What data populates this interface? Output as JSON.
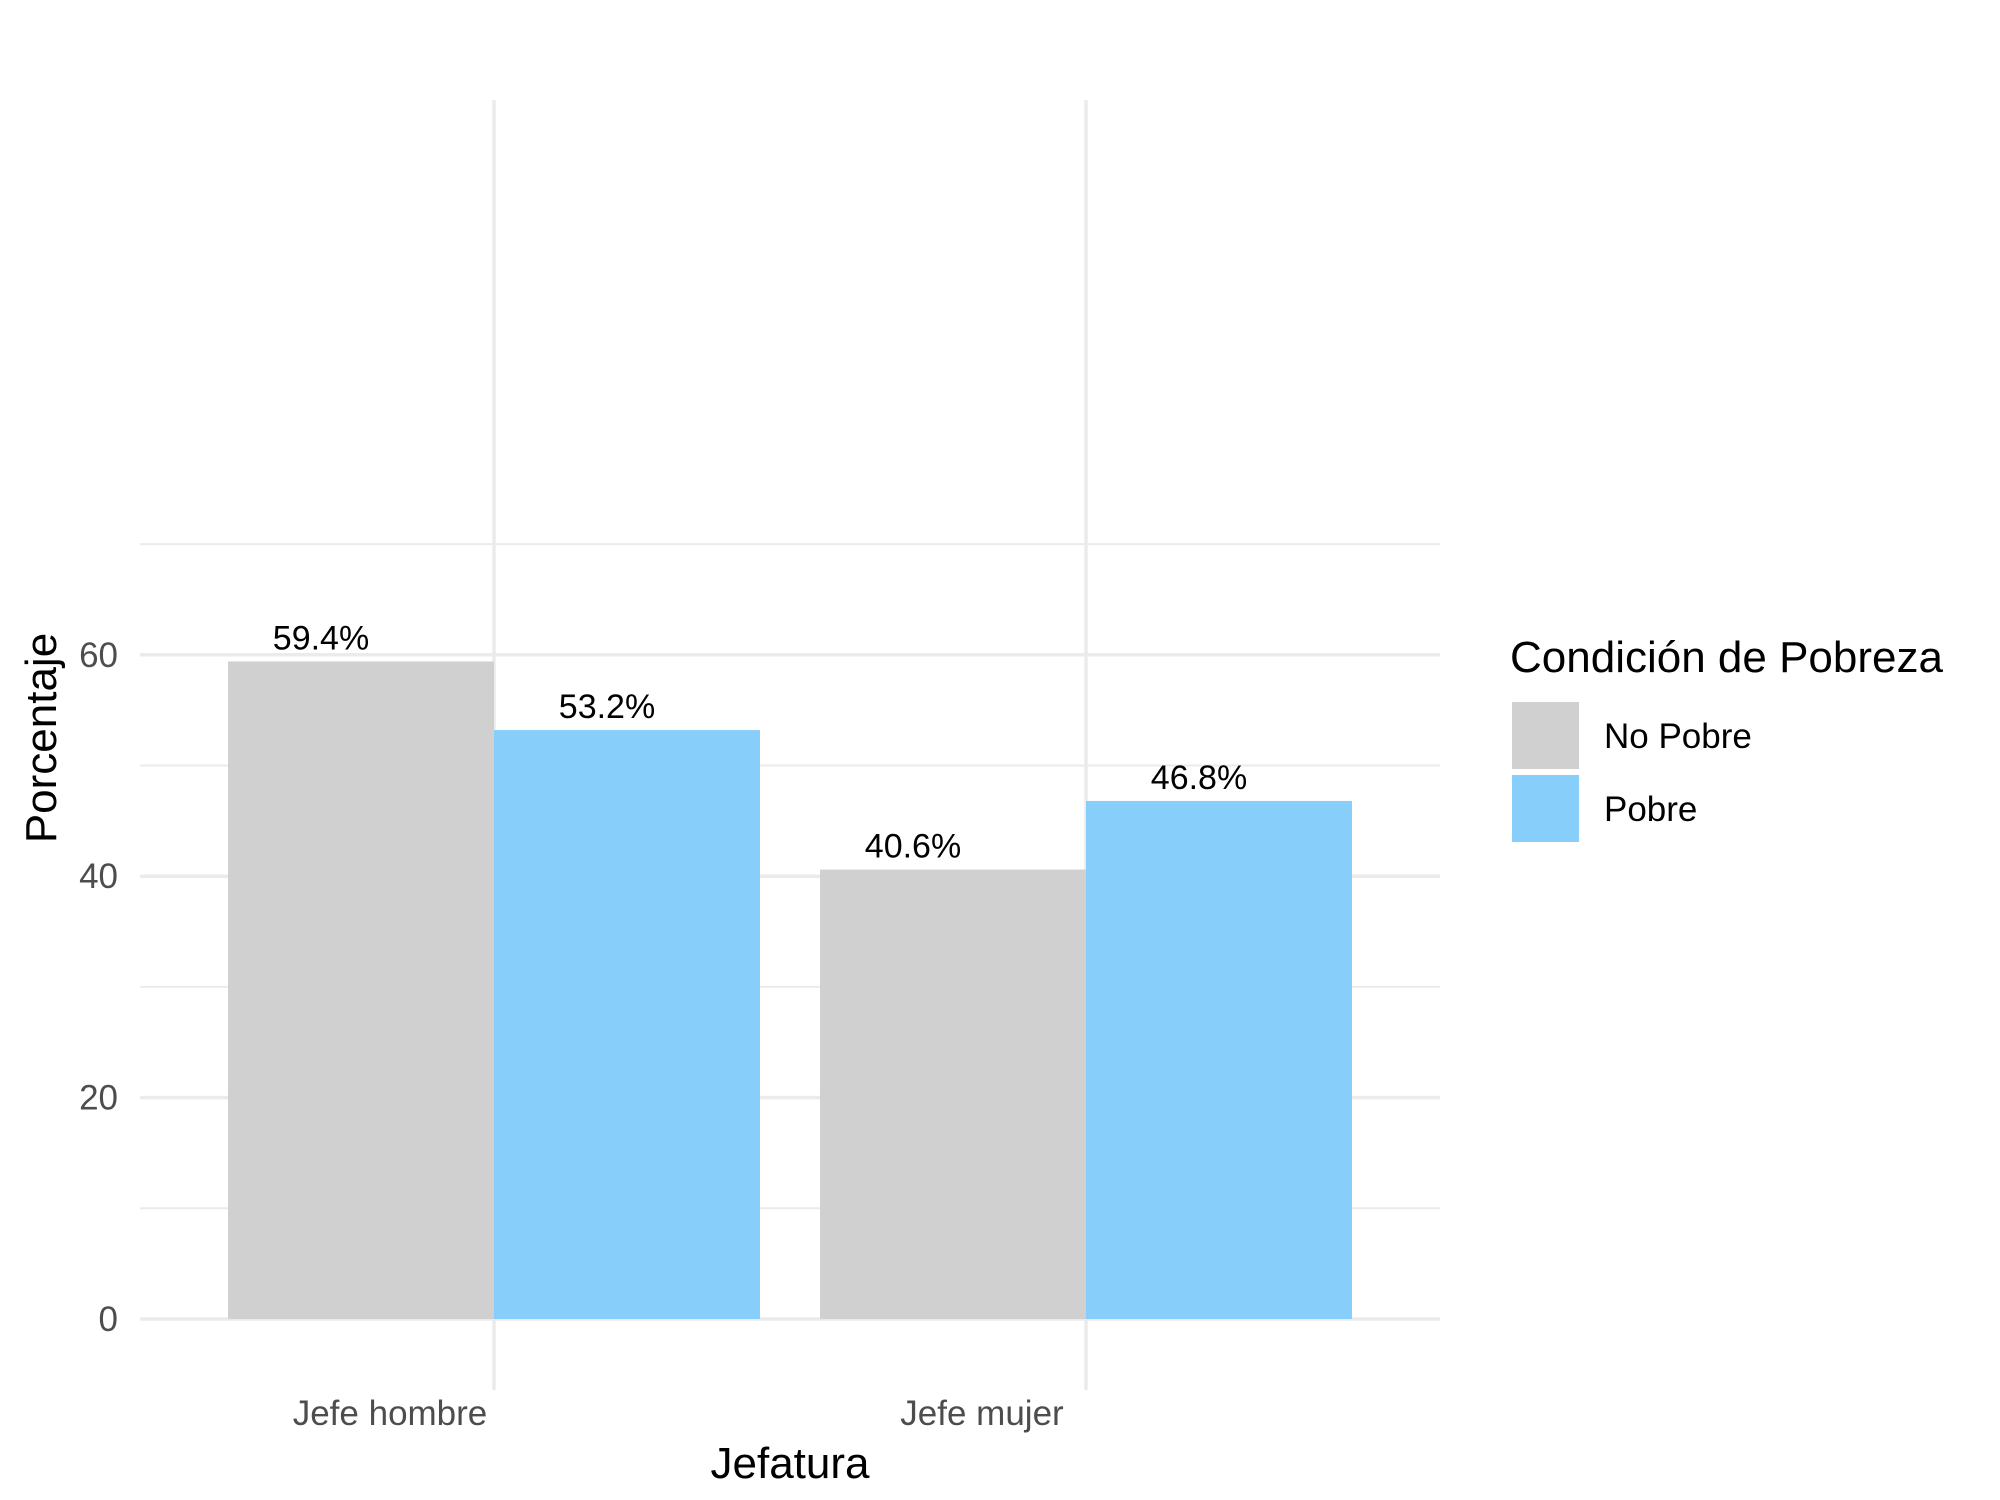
{
  "chart_data": {
    "type": "bar",
    "title": "",
    "xlabel": "Jefatura",
    "ylabel": "Porcentaje",
    "categories": [
      "Jefe hombre",
      "Jefe mujer"
    ],
    "series": [
      {
        "name": "No Pobre",
        "color": "#d0d0d0",
        "values": [
          59.4,
          40.6
        ],
        "labels": [
          "59.4%",
          "40.6%"
        ]
      },
      {
        "name": "Pobre",
        "color": "#87cefa",
        "values": [
          53.2,
          46.8
        ],
        "labels": [
          "53.2%",
          "46.8%"
        ]
      }
    ],
    "ylim": [
      0,
      70
    ],
    "yticks": [
      0,
      20,
      40,
      60
    ],
    "ytick_labels": [
      "0",
      "20",
      "40",
      "60"
    ],
    "grid": true,
    "legend": {
      "title": "Condición de Pobreza",
      "position": "right"
    }
  }
}
